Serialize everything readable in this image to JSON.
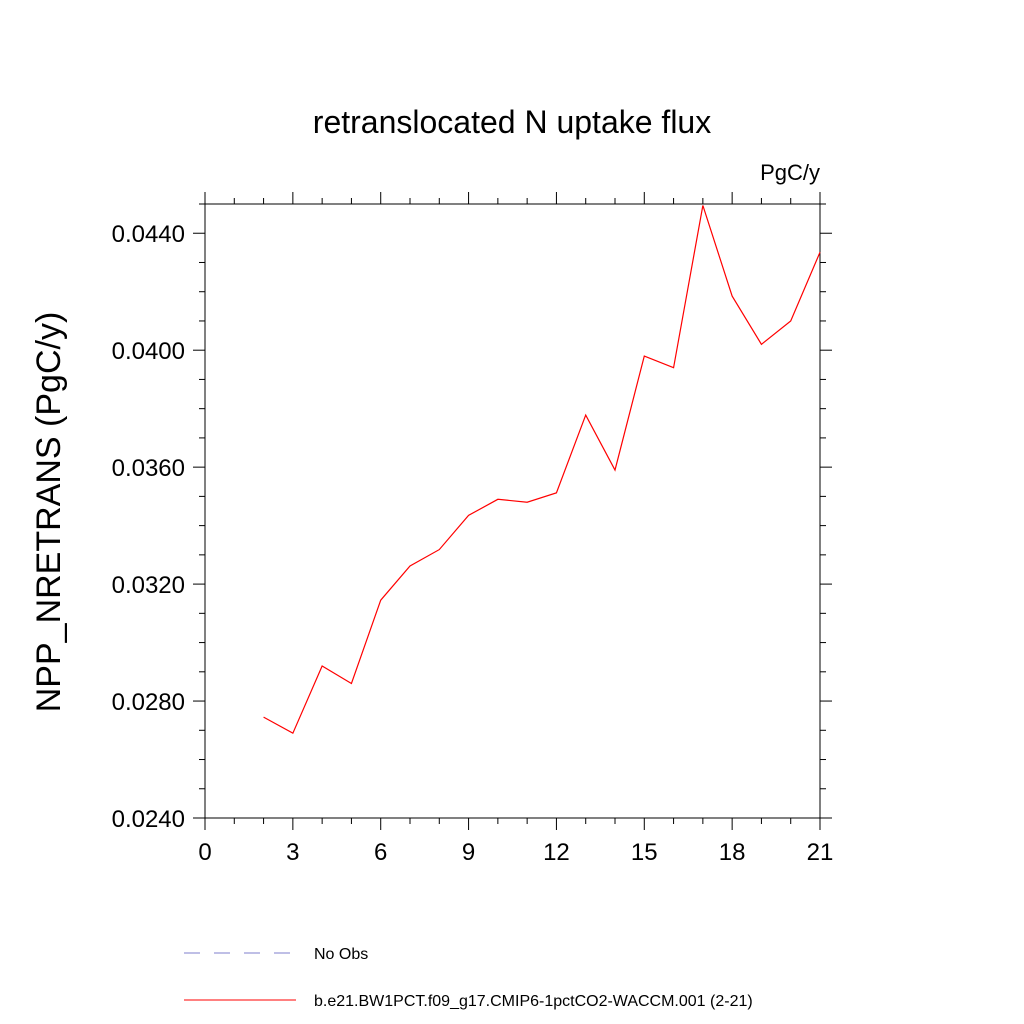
{
  "chart_data": {
    "type": "line",
    "title": "retranslocated N uptake flux",
    "units": "PgC/y",
    "ylabel": "NPP_NRETRANS  (PgC/y)",
    "xlabel": "",
    "xlim": [
      0,
      21
    ],
    "ylim": [
      0.024,
      0.045
    ],
    "x_ticks": [
      0,
      3,
      6,
      9,
      12,
      15,
      18,
      21
    ],
    "x_tick_labels": [
      "0",
      "3",
      "6",
      "9",
      "12",
      "15",
      "18",
      "21"
    ],
    "y_ticks": [
      0.024,
      0.028,
      0.032,
      0.036,
      0.04,
      0.044
    ],
    "y_tick_labels": [
      "0.0240",
      "0.0280",
      "0.0320",
      "0.0360",
      "0.0400",
      "0.0440"
    ],
    "grid": false,
    "legend_position": "bottom",
    "series": [
      {
        "name": "No Obs",
        "color": "#7f7fcc",
        "dash": "dashed",
        "x": [],
        "y": []
      },
      {
        "name": "b.e21.BW1PCT.f09_g17.CMIP6-1pctCO2-WACCM.001 (2-21)",
        "color": "#ff0000",
        "dash": "solid",
        "x": [
          2,
          3,
          4,
          5,
          6,
          7,
          8,
          9,
          10,
          11,
          12,
          13,
          14,
          15,
          16,
          17,
          18,
          19,
          20,
          21
        ],
        "y": [
          0.02745,
          0.0269,
          0.0292,
          0.0286,
          0.03145,
          0.03262,
          0.03318,
          0.03435,
          0.0349,
          0.0348,
          0.03512,
          0.03778,
          0.0359,
          0.0398,
          0.0394,
          0.04495,
          0.04185,
          0.0402,
          0.041,
          0.04335
        ]
      }
    ]
  }
}
